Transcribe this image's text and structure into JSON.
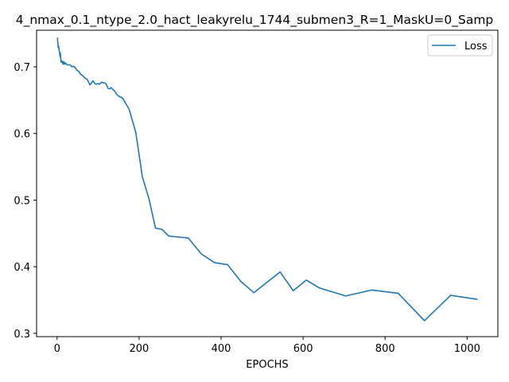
{
  "chart_data": {
    "type": "line",
    "title": "4_nmax_0.1_ntype_2.0_hact_leakyrelu_1744_submen3_R=1_MaskU=0_Samp",
    "xlabel": "EPOCHS",
    "ylabel": "",
    "xlim": [
      -50,
      1075
    ],
    "ylim": [
      0.295,
      0.755
    ],
    "xticks": [
      0,
      200,
      400,
      600,
      800,
      1000
    ],
    "yticks": [
      0.3,
      0.4,
      0.5,
      0.6,
      0.7
    ],
    "xtick_labels": [
      "0",
      "200",
      "400",
      "600",
      "800",
      "1000"
    ],
    "ytick_labels": [
      "0.3",
      "0.4",
      "0.5",
      "0.6",
      "0.7"
    ],
    "grid": false,
    "legend": {
      "position": "top-right",
      "entries": [
        "Loss"
      ]
    },
    "series": [
      {
        "name": "Loss",
        "color": "#1f77b4",
        "x": [
          1,
          2,
          3,
          4,
          5,
          6,
          7,
          8,
          9,
          10,
          12,
          14,
          16,
          18,
          20,
          24,
          28,
          32,
          36,
          40,
          44,
          48,
          52,
          56,
          60,
          64,
          68,
          72,
          76,
          80,
          84,
          88,
          92,
          96,
          100,
          104,
          108,
          112,
          116,
          120,
          124,
          128,
          132,
          136,
          140,
          144,
          150,
          160,
          176,
          192,
          208,
          224,
          240,
          256,
          272,
          288,
          320,
          352,
          384,
          416,
          448,
          480,
          544,
          576,
          608,
          640,
          704,
          768,
          832,
          896,
          960,
          1024
        ],
        "y": [
          0.743,
          0.734,
          0.729,
          0.731,
          0.724,
          0.722,
          0.716,
          0.721,
          0.711,
          0.707,
          0.709,
          0.704,
          0.708,
          0.704,
          0.706,
          0.703,
          0.703,
          0.703,
          0.7,
          0.701,
          0.699,
          0.695,
          0.694,
          0.69,
          0.688,
          0.686,
          0.683,
          0.682,
          0.678,
          0.673,
          0.676,
          0.679,
          0.675,
          0.674,
          0.675,
          0.674,
          0.677,
          0.676,
          0.676,
          0.674,
          0.668,
          0.667,
          0.669,
          0.666,
          0.664,
          0.66,
          0.656,
          0.653,
          0.636,
          0.601,
          0.535,
          0.502,
          0.458,
          0.456,
          0.446,
          0.445,
          0.443,
          0.419,
          0.406,
          0.403,
          0.378,
          0.361,
          0.392,
          0.364,
          0.38,
          0.368,
          0.356,
          0.365,
          0.36,
          0.319,
          0.357,
          0.351
        ]
      }
    ]
  }
}
